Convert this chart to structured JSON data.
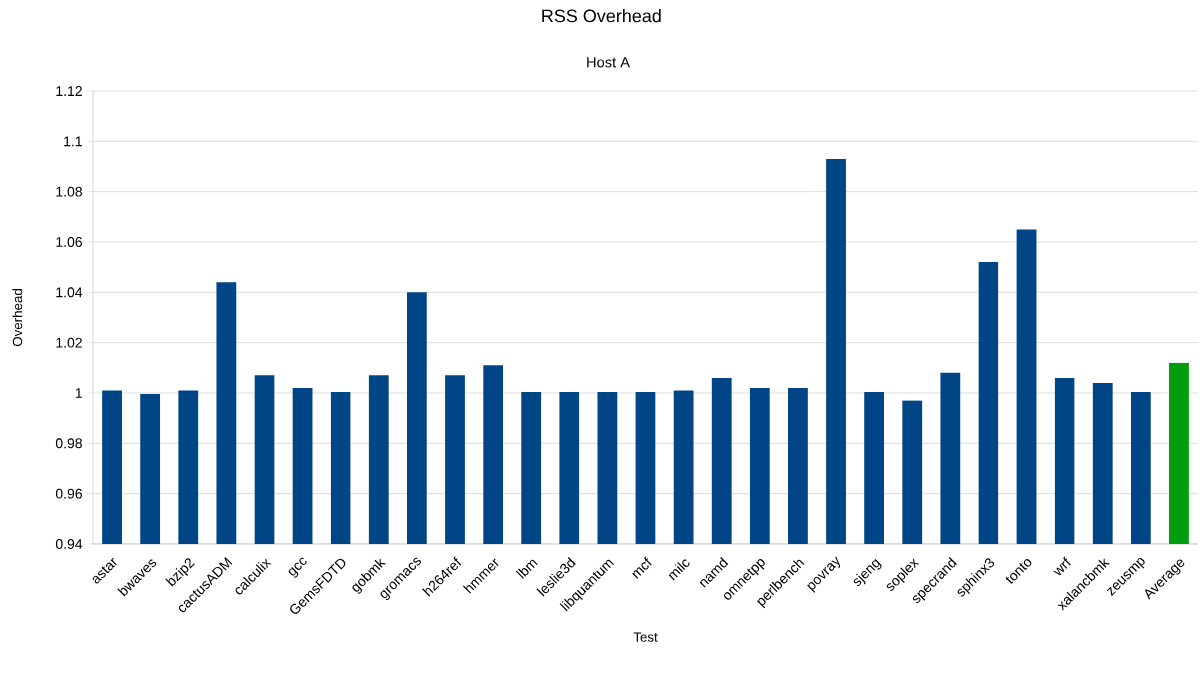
{
  "chart_data": {
    "type": "bar",
    "title": "RSS Overhead",
    "subtitle": "Host A",
    "xlabel": "Test",
    "ylabel": "Overhead",
    "categories": [
      "astar",
      "bwaves",
      "bzip2",
      "cactusADM",
      "calculix",
      "gcc",
      "GemsFDTD",
      "gobmk",
      "gromacs",
      "h264ref",
      "hmmer",
      "lbm",
      "leslie3d",
      "libquantum",
      "mcf",
      "milc",
      "namd",
      "omnetpp",
      "perlbench",
      "povray",
      "sjeng",
      "soplex",
      "specrand",
      "sphinx3",
      "tonto",
      "wrf",
      "xalancbmk",
      "zeusmp",
      "Average"
    ],
    "values": [
      1.001,
      0.9996,
      1.001,
      1.044,
      1.007,
      1.002,
      1.0004,
      1.007,
      1.04,
      1.007,
      1.011,
      1.0004,
      1.0004,
      1.0004,
      1.0004,
      1.001,
      1.006,
      1.002,
      1.002,
      1.093,
      1.0004,
      0.997,
      1.008,
      1.052,
      1.065,
      1.006,
      1.004,
      1.0004,
      1.012
    ],
    "colors": [
      "#004586",
      "#004586",
      "#004586",
      "#004586",
      "#004586",
      "#004586",
      "#004586",
      "#004586",
      "#004586",
      "#004586",
      "#004586",
      "#004586",
      "#004586",
      "#004586",
      "#004586",
      "#004586",
      "#004586",
      "#004586",
      "#004586",
      "#004586",
      "#004586",
      "#004586",
      "#004586",
      "#004586",
      "#004586",
      "#004586",
      "#004586",
      "#004586",
      "#009e0e"
    ],
    "ylim": [
      0.94,
      1.12
    ],
    "yticks": [
      0.94,
      0.96,
      0.98,
      1,
      1.02,
      1.04,
      1.06,
      1.08,
      1.1,
      1.12
    ],
    "grid": "y"
  }
}
